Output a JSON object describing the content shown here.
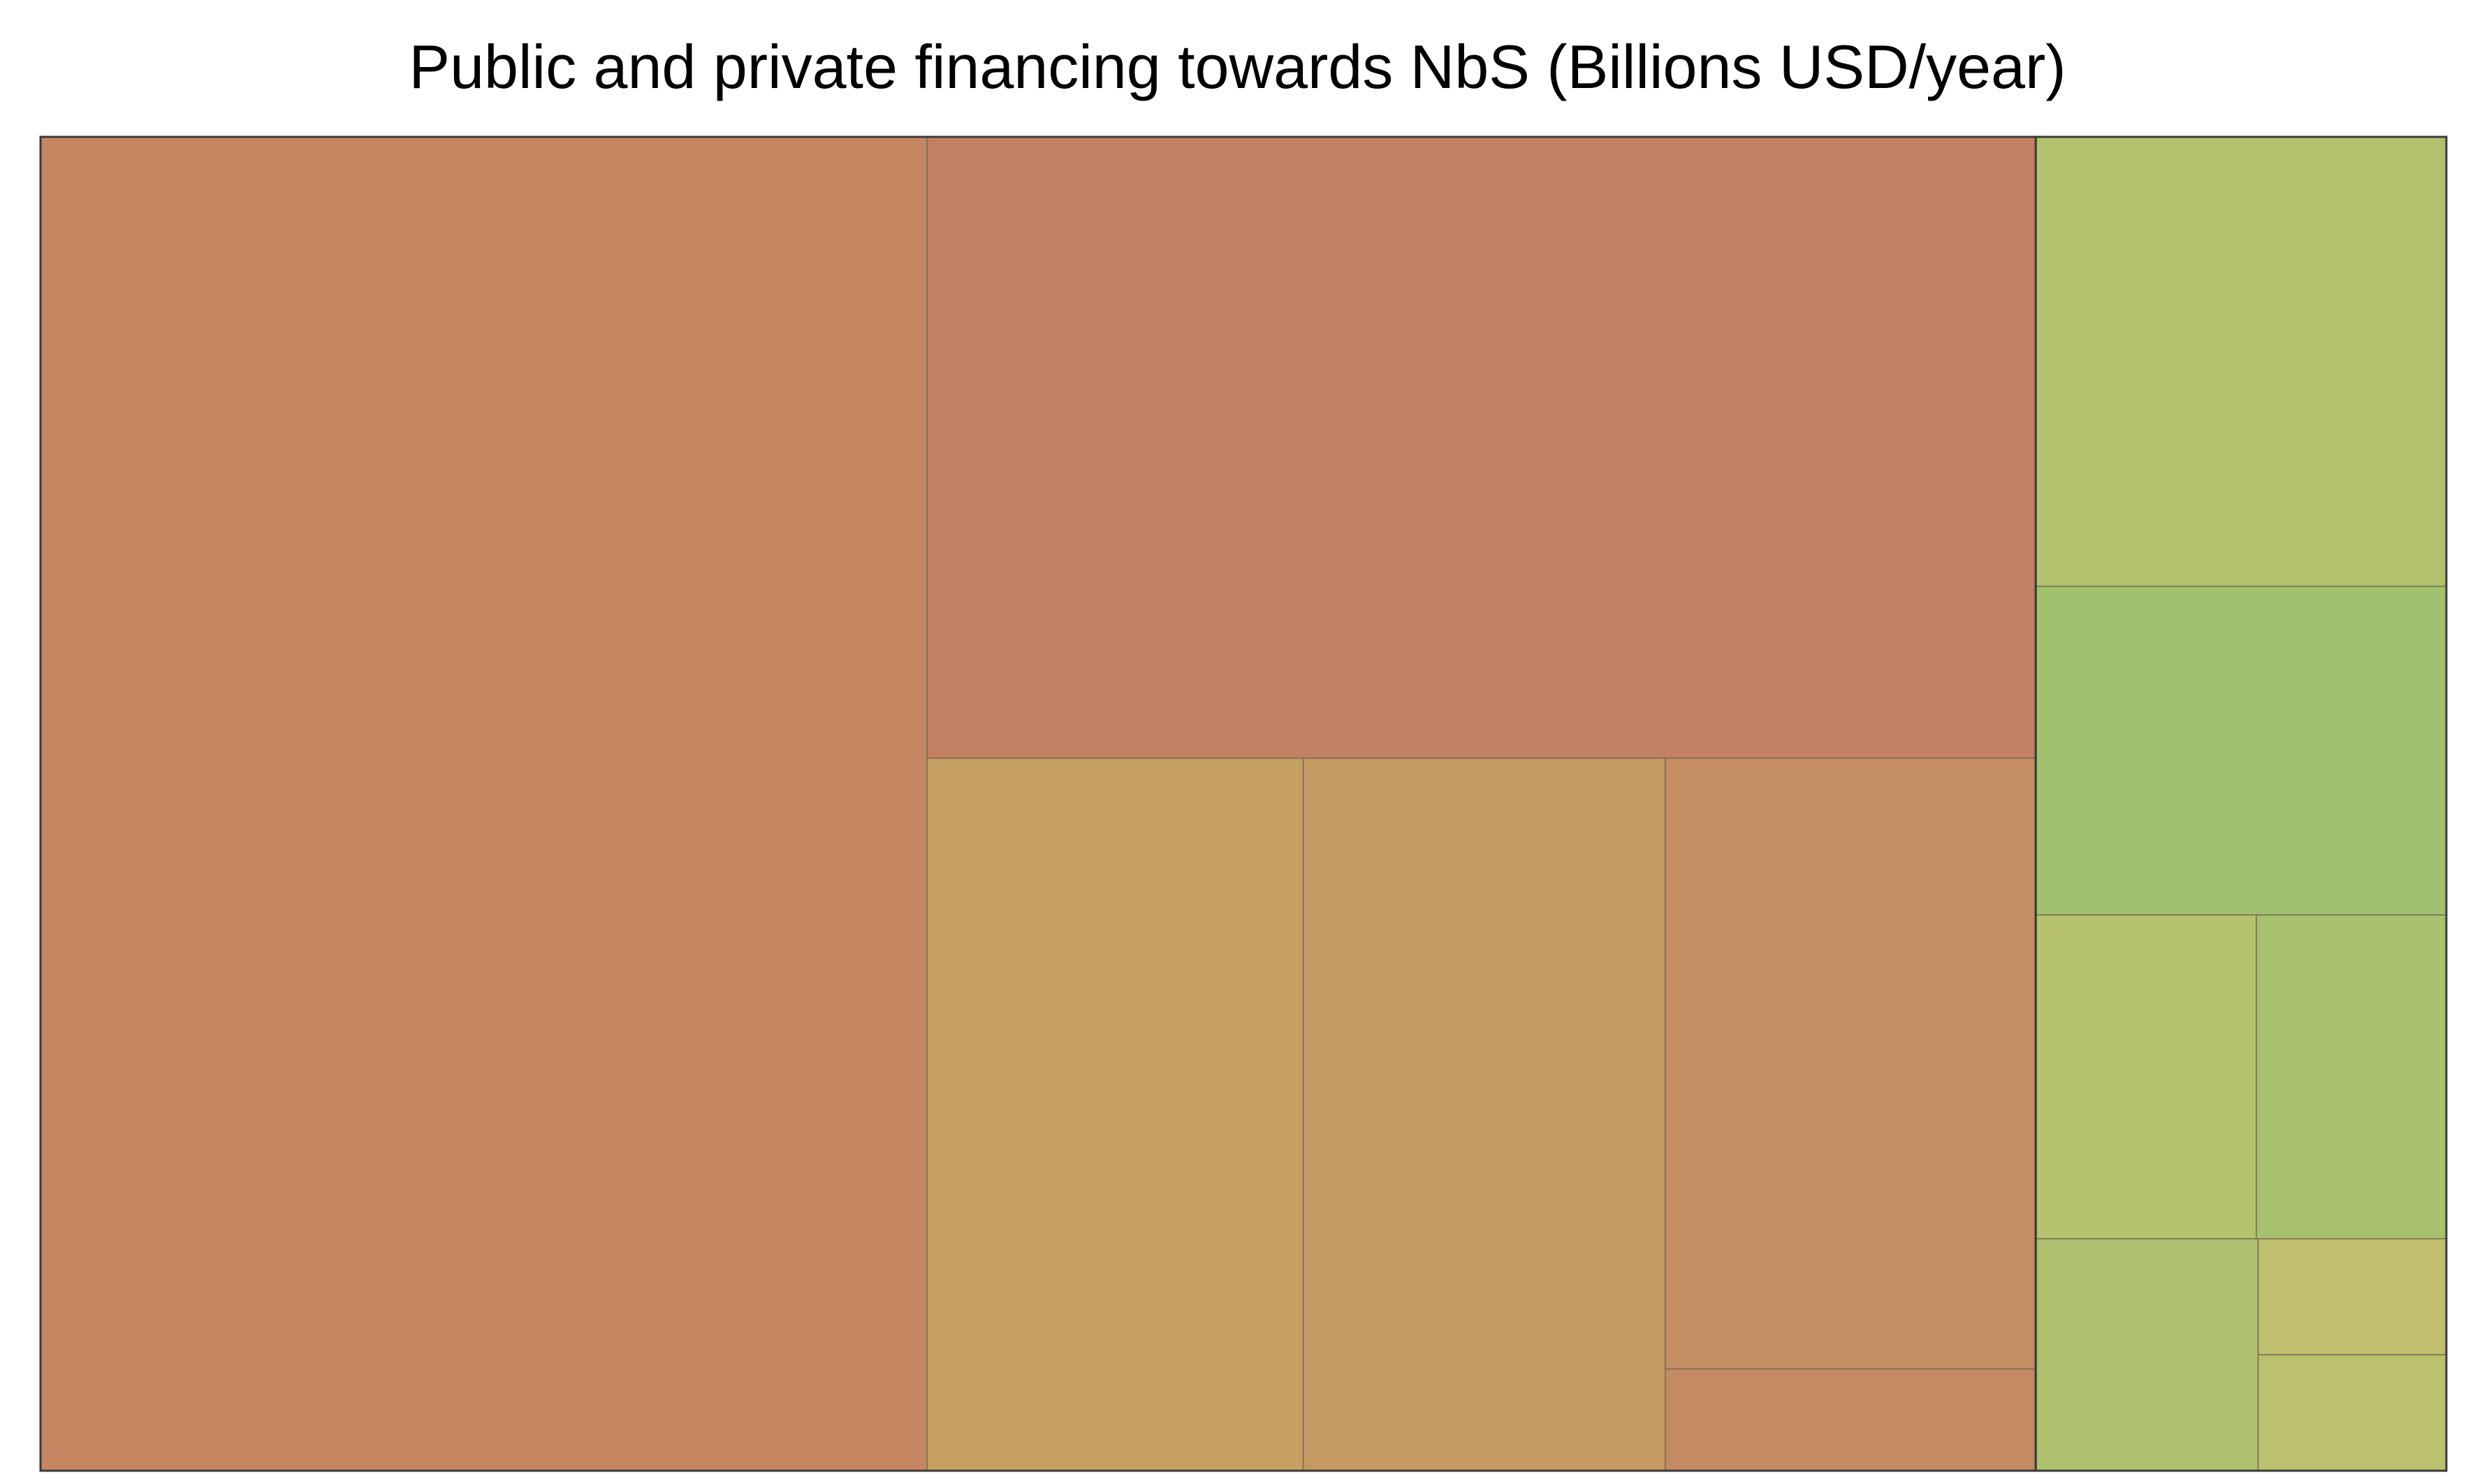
{
  "chart_data": {
    "type": "treemap",
    "title": "Public and private financing towards NbS (Billions USD/year)",
    "groups": [
      {
        "color": "#c3876a",
        "values": [
          {
            "value": 59.6,
            "color": "#c48762"
          },
          {
            "value": 34.7,
            "color": "#c48062"
          },
          {
            "value": 13.5,
            "color": "#c6a062"
          },
          {
            "value": 13.0,
            "color": "#c49962"
          },
          {
            "value": 11.4,
            "color": "#c48d62"
          },
          {
            "value": 1.9,
            "color": "#c48a62"
          }
        ]
      },
      {
        "color": "#a6bf6c",
        "values": [
          {
            "value": 9.3,
            "color": "#b1c16e"
          },
          {
            "value": 6.8,
            "color": "#a2c16e"
          },
          {
            "value": 3.6,
            "color": "#b6c16e"
          },
          {
            "value": 3.1,
            "color": "#a7c16e"
          },
          {
            "value": 2.6,
            "color": "#adc16e"
          },
          {
            "value": 1.1,
            "color": "#bfbf6e"
          },
          {
            "value": 1.1,
            "color": "#bbc16e"
          }
        ]
      }
    ]
  }
}
